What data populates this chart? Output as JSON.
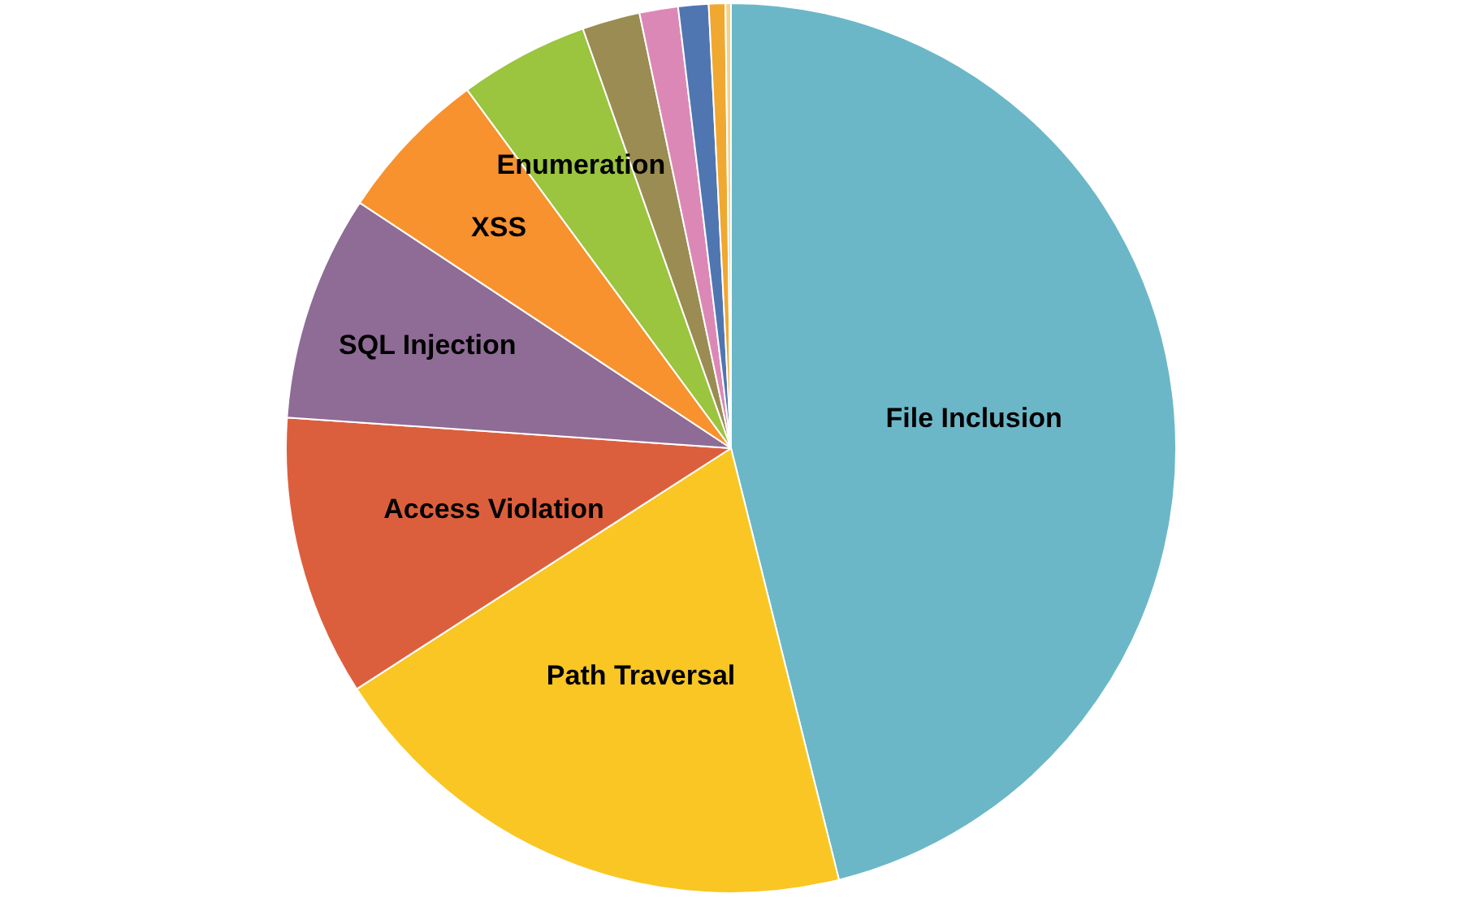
{
  "chart_data": {
    "type": "pie",
    "categories": [
      "File Inclusion",
      "Path Traversal",
      "Access Violation",
      "SQL Injection",
      "XSS",
      "Enumeration",
      null,
      null,
      null,
      null,
      null
    ],
    "values": [
      46.1,
      19.8,
      10.2,
      8.2,
      5.6,
      4.7,
      2.1,
      1.4,
      1.1,
      0.6,
      0.2
    ],
    "colors": [
      "#6bb7c8",
      "#f9c623",
      "#dc5f3d",
      "#8e6c96",
      "#f7922e",
      "#9bc43f",
      "#9a8c52",
      "#dc88b6",
      "#4f76b0",
      "#f0a830",
      "#f5d28a"
    ],
    "legend": false
  }
}
